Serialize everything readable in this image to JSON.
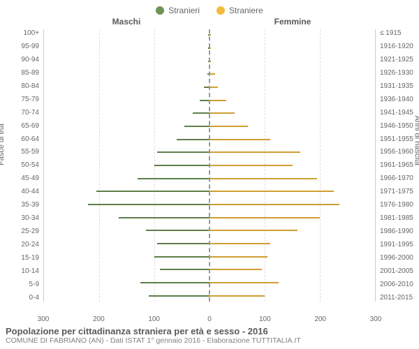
{
  "legend": {
    "male": {
      "label": "Stranieri",
      "color": "#6f9456"
    },
    "female": {
      "label": "Straniere",
      "color": "#f4ba3b"
    }
  },
  "sections": {
    "male": "Maschi",
    "female": "Femmine"
  },
  "axis_titles": {
    "left": "Fasce di età",
    "right": "Anni di nascita"
  },
  "x_axis": {
    "max": 300,
    "ticks": [
      300,
      200,
      100,
      0,
      100,
      200,
      300
    ]
  },
  "plot_style": {
    "grid_color": "#dddddd",
    "center_dash_color": "#999999",
    "bg": "#ffffff"
  },
  "rows": [
    {
      "age": "100+",
      "birth": "≤ 1915",
      "m": 0,
      "f": 0
    },
    {
      "age": "95-99",
      "birth": "1916-1920",
      "m": 0,
      "f": 0
    },
    {
      "age": "90-94",
      "birth": "1921-1925",
      "m": 0,
      "f": 0
    },
    {
      "age": "85-89",
      "birth": "1926-1930",
      "m": 4,
      "f": 10
    },
    {
      "age": "80-84",
      "birth": "1931-1935",
      "m": 10,
      "f": 15
    },
    {
      "age": "75-79",
      "birth": "1936-1940",
      "m": 18,
      "f": 30
    },
    {
      "age": "70-74",
      "birth": "1941-1945",
      "m": 30,
      "f": 45
    },
    {
      "age": "65-69",
      "birth": "1946-1950",
      "m": 45,
      "f": 70
    },
    {
      "age": "60-64",
      "birth": "1951-1955",
      "m": 60,
      "f": 110
    },
    {
      "age": "55-59",
      "birth": "1956-1960",
      "m": 95,
      "f": 165
    },
    {
      "age": "50-54",
      "birth": "1961-1965",
      "m": 100,
      "f": 150
    },
    {
      "age": "45-49",
      "birth": "1966-1970",
      "m": 130,
      "f": 195
    },
    {
      "age": "40-44",
      "birth": "1971-1975",
      "m": 205,
      "f": 225
    },
    {
      "age": "35-39",
      "birth": "1976-1980",
      "m": 220,
      "f": 235
    },
    {
      "age": "30-34",
      "birth": "1981-1985",
      "m": 165,
      "f": 200
    },
    {
      "age": "25-29",
      "birth": "1986-1990",
      "m": 115,
      "f": 160
    },
    {
      "age": "20-24",
      "birth": "1991-1995",
      "m": 95,
      "f": 110
    },
    {
      "age": "15-19",
      "birth": "1996-2000",
      "m": 100,
      "f": 105
    },
    {
      "age": "10-14",
      "birth": "2001-2005",
      "m": 90,
      "f": 95
    },
    {
      "age": "5-9",
      "birth": "2006-2010",
      "m": 125,
      "f": 125
    },
    {
      "age": "0-4",
      "birth": "2011-2015",
      "m": 110,
      "f": 100
    }
  ],
  "footer": {
    "title": "Popolazione per cittadinanza straniera per età e sesso - 2016",
    "subtitle": "COMUNE DI FABRIANO (AN) - Dati ISTAT 1° gennaio 2016 - Elaborazione TUTTITALIA.IT"
  }
}
